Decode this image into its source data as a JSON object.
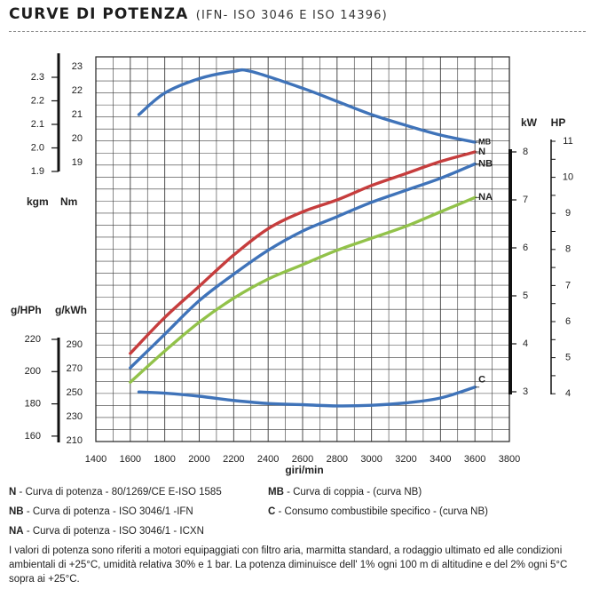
{
  "header": {
    "title": "CURVE DI POTENZA",
    "subtitle": "(IFN- ISO 3046 E ISO 14396)"
  },
  "legend": [
    {
      "code": "N",
      "text": " - Curva di potenza - 80/1269/CE E-ISO 1585"
    },
    {
      "code": "NB",
      "text": " - Curva di potenza  - ISO 3046/1 -IFN"
    },
    {
      "code": "NA",
      "text": " - Curva di potenza  - ISO 3046/1 - ICXN"
    },
    {
      "code": "MB",
      "text": " - Curva di coppia - (curva NB)"
    },
    {
      "code": "C",
      "text": "   - Consumo combustibile specifico - (curva NB)"
    }
  ],
  "note": "I valori di potenza sono riferiti a motori equipaggiati con filtro aria, marmitta standard, a rodaggio ultimato ed alle condizioni ambientali di +25°C, umidità relativa 30% e 1 bar. La potenza diminuisce dell' 1% ogni 100 m di altitudine e del 2% ogni 5°C sopra ai +25°C.",
  "chart_data": {
    "type": "line",
    "xlabel": "giri/min",
    "xlim": [
      1400,
      3800
    ],
    "x_ticks": [
      "1400",
      "1600",
      "1800",
      "2000",
      "2200",
      "2400",
      "2600",
      "2800",
      "3000",
      "3200",
      "3400",
      "3600",
      "3800"
    ],
    "grid": true,
    "torque_axis": {
      "kgm_label": "kgm",
      "nm_label": "Nm",
      "kgm_ticks": [
        "2.3",
        "2.2",
        "2.1",
        "2.0",
        "1.9"
      ],
      "nm_ticks": [
        "23",
        "22",
        "21",
        "20",
        "19"
      ],
      "nm_range": [
        19,
        23
      ]
    },
    "power_axis": {
      "kw_label": "kW",
      "hp_label": "HP",
      "kw_ticks": [
        "8",
        "7",
        "6",
        "5",
        "4",
        "3"
      ],
      "hp_ticks": [
        "11",
        "10",
        "9",
        "8",
        "7",
        "6",
        "5",
        "4"
      ],
      "kw_range": [
        3,
        8
      ]
    },
    "consumption_axis": {
      "ghph_label": "g/HPh",
      "gkwh_label": "g/kWh",
      "ghph_ticks": [
        "220",
        "200",
        "180",
        "160"
      ],
      "gkwh_ticks": [
        "290",
        "270",
        "250",
        "230",
        "210"
      ],
      "gkwh_range": [
        210,
        290
      ]
    },
    "series": [
      {
        "name": "MB",
        "axis": "torque_nm",
        "color": "#3f73b9",
        "x": [
          1650,
          1800,
          2000,
          2200,
          2300,
          2600,
          2800,
          3000,
          3200,
          3400,
          3600
        ],
        "y": [
          21.0,
          21.9,
          22.5,
          22.8,
          22.8,
          22.1,
          21.55,
          21.0,
          20.55,
          20.15,
          19.85
        ]
      },
      {
        "name": "N",
        "axis": "power_kw",
        "color": "#c63d3d",
        "x": [
          1600,
          1800,
          2000,
          2200,
          2400,
          2600,
          2800,
          3000,
          3200,
          3400,
          3600
        ],
        "y": [
          3.8,
          4.55,
          5.2,
          5.85,
          6.4,
          6.75,
          7.0,
          7.3,
          7.55,
          7.8,
          8.0
        ]
      },
      {
        "name": "NB",
        "axis": "power_kw",
        "color": "#3f73b9",
        "x": [
          1600,
          1800,
          2000,
          2200,
          2400,
          2600,
          2800,
          3000,
          3200,
          3400,
          3600
        ],
        "y": [
          3.5,
          4.2,
          4.9,
          5.45,
          5.95,
          6.35,
          6.65,
          6.95,
          7.2,
          7.45,
          7.75
        ]
      },
      {
        "name": "NA",
        "axis": "power_kw",
        "color": "#92c24a",
        "x": [
          1600,
          1800,
          2000,
          2200,
          2400,
          2600,
          2800,
          3000,
          3200,
          3400,
          3600
        ],
        "y": [
          3.2,
          3.85,
          4.45,
          4.95,
          5.35,
          5.65,
          5.95,
          6.2,
          6.45,
          6.75,
          7.05
        ]
      },
      {
        "name": "C",
        "axis": "consumption_gkwh",
        "color": "#3f73b9",
        "x": [
          1650,
          1800,
          2000,
          2200,
          2400,
          2600,
          2800,
          3000,
          3200,
          3400,
          3600
        ],
        "y": [
          251,
          250,
          247.5,
          244,
          241.5,
          240.5,
          239.5,
          240,
          242,
          246,
          255
        ]
      }
    ]
  }
}
